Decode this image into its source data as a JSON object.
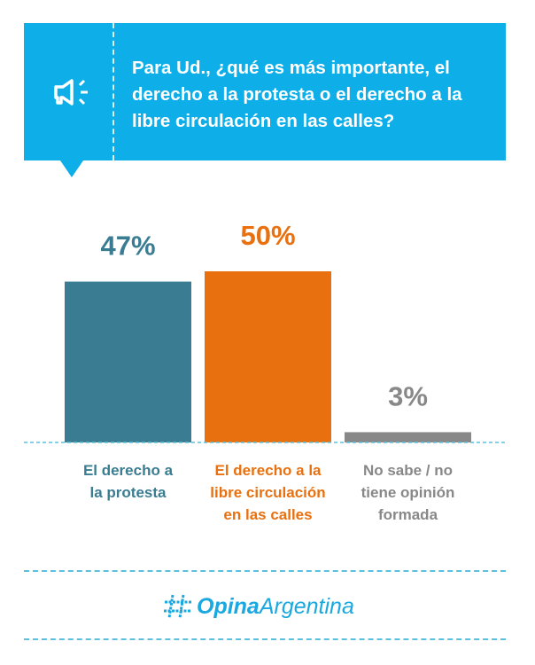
{
  "header": {
    "question": "Para Ud., ¿qué es más importante, el derecho a la protesta o el derecho a la libre circulación en las calles?",
    "icon": "megaphone-icon",
    "color": "#0eaee9"
  },
  "chart_data": {
    "type": "bar",
    "categories": [
      [
        "El derecho a",
        "la protesta"
      ],
      [
        "El derecho a la",
        "libre circulación",
        "en las calles"
      ],
      [
        "No sabe / no",
        "tiene opinión",
        "formada"
      ]
    ],
    "values": [
      47,
      50,
      3
    ],
    "labels": [
      "47%",
      "50%",
      "3%"
    ],
    "colors": [
      "#3a7d93",
      "#e8700f",
      "#888888"
    ],
    "ylim": [
      0,
      55
    ],
    "grid": false
  },
  "footer": {
    "logo_bold": "Opina",
    "logo_regular": "Argentina",
    "logo_icon": "hashtag-icon"
  }
}
